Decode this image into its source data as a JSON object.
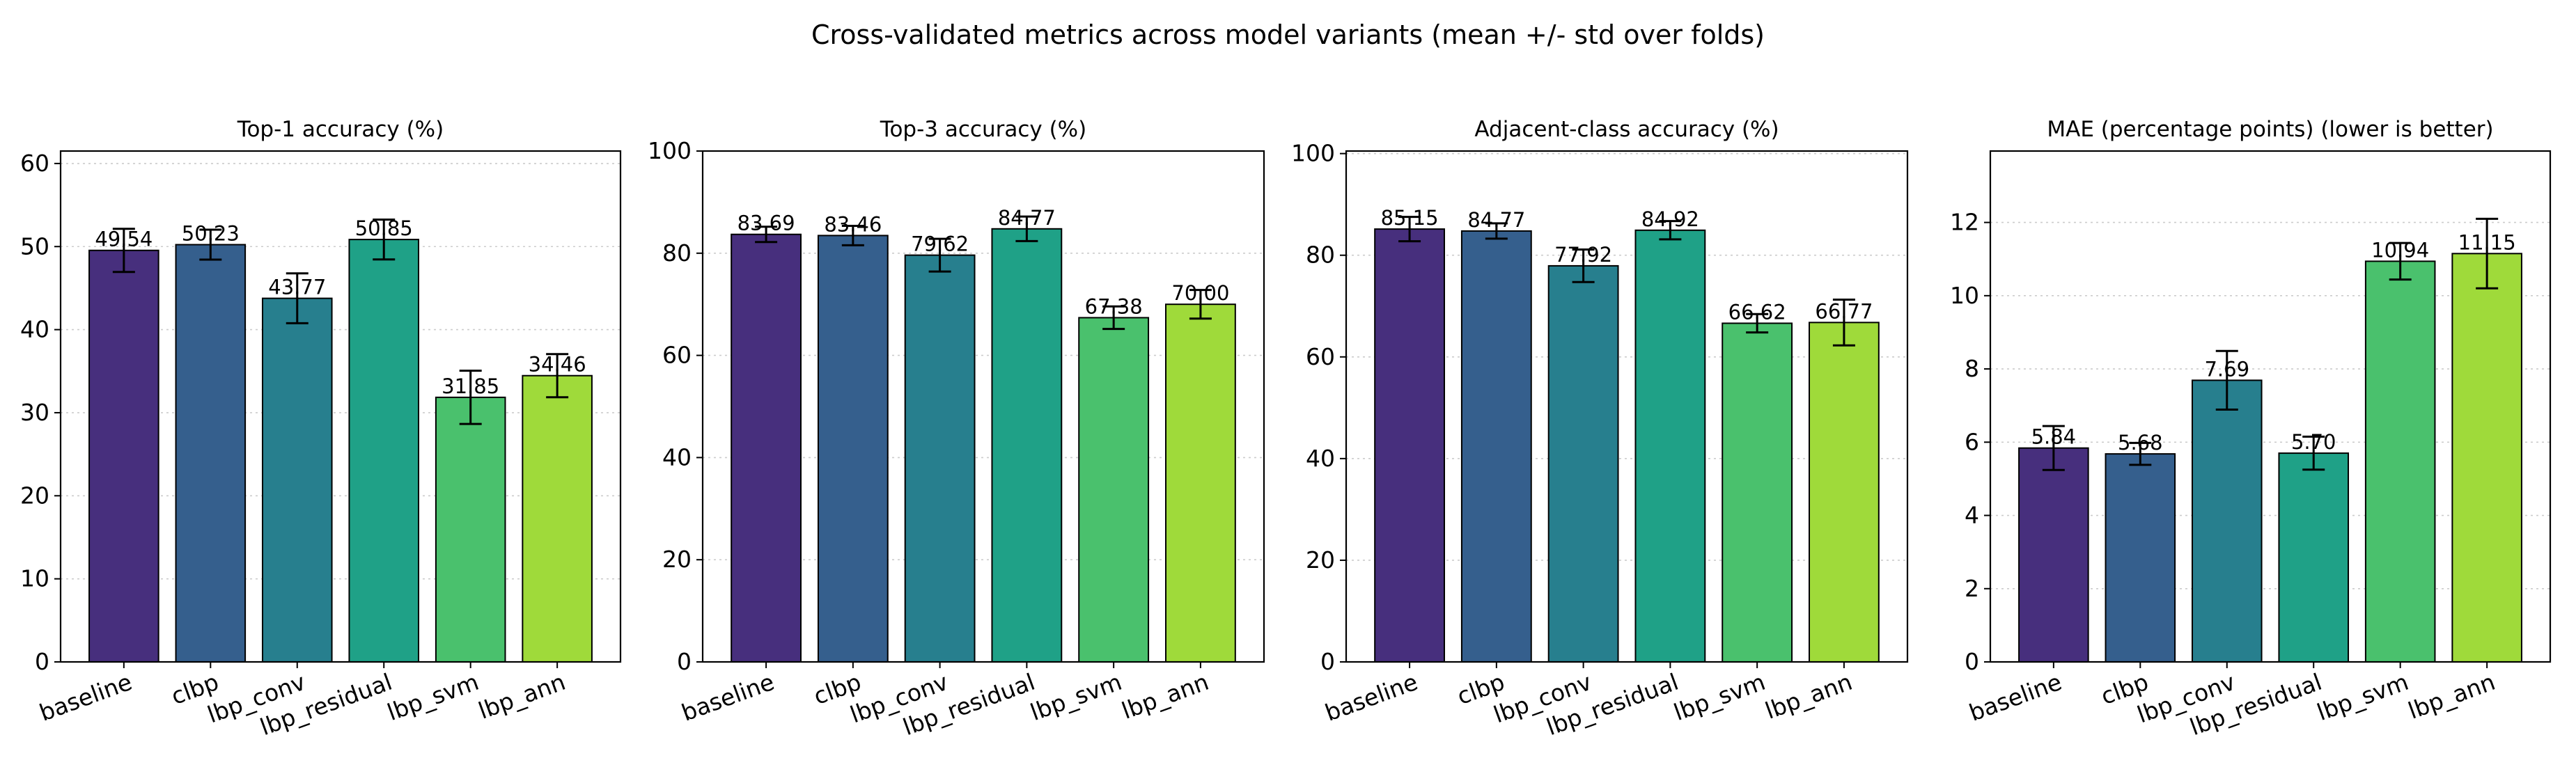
{
  "figure": {
    "suptitle": "Cross-validated metrics across model variants (mean +/- std over folds)"
  },
  "colors": {
    "bars": [
      "#472f7d",
      "#355f8d",
      "#277f8e",
      "#1fa187",
      "#4ac16d",
      "#9fda3a"
    ],
    "grid": "#cccccc",
    "edge": "#000000"
  },
  "chart_data": [
    {
      "type": "bar",
      "title": "Top-1 accuracy (%)",
      "categories": [
        "baseline",
        "clbp",
        "lbp_conv",
        "lbp_residual",
        "lbp_svm",
        "lbp_ann"
      ],
      "values": [
        49.54,
        50.23,
        43.77,
        50.85,
        31.85,
        34.46
      ],
      "errors": [
        2.6,
        1.8,
        3.0,
        2.4,
        3.2,
        2.6
      ],
      "value_labels": [
        "49.54",
        "50.23",
        "43.77",
        "50.85",
        "31.85",
        "34.46"
      ],
      "ylim": [
        0,
        61.5
      ],
      "yticks": [
        0,
        10,
        20,
        30,
        40,
        50,
        60
      ],
      "grid": "y"
    },
    {
      "type": "bar",
      "title": "Top-3 accuracy (%)",
      "categories": [
        "baseline",
        "clbp",
        "lbp_conv",
        "lbp_residual",
        "lbp_svm",
        "lbp_ann"
      ],
      "values": [
        83.69,
        83.46,
        79.62,
        84.77,
        67.38,
        70.0
      ],
      "errors": [
        1.5,
        1.9,
        3.2,
        2.4,
        2.2,
        2.8
      ],
      "value_labels": [
        "83.69",
        "83.46",
        "79.62",
        "84.77",
        "67.38",
        "70.00"
      ],
      "ylim": [
        0,
        100
      ],
      "yticks": [
        0,
        20,
        40,
        60,
        80,
        100
      ],
      "grid": "y"
    },
    {
      "type": "bar",
      "title": "Adjacent-class accuracy (%)",
      "categories": [
        "baseline",
        "clbp",
        "lbp_conv",
        "lbp_residual",
        "lbp_svm",
        "lbp_ann"
      ],
      "values": [
        85.15,
        84.77,
        77.92,
        84.92,
        66.62,
        66.77
      ],
      "errors": [
        2.4,
        1.5,
        3.2,
        1.8,
        1.8,
        4.5
      ],
      "value_labels": [
        "85.15",
        "84.77",
        "77.92",
        "84.92",
        "66.62",
        "66.77"
      ],
      "ylim": [
        0,
        100.5
      ],
      "yticks": [
        0,
        20,
        40,
        60,
        80,
        100
      ],
      "grid": "y"
    },
    {
      "type": "bar",
      "title": "MAE (percentage points)  (lower is better)",
      "categories": [
        "baseline",
        "clbp",
        "lbp_conv",
        "lbp_residual",
        "lbp_svm",
        "lbp_ann"
      ],
      "values": [
        5.84,
        5.68,
        7.69,
        5.7,
        10.94,
        11.15
      ],
      "errors": [
        0.6,
        0.3,
        0.8,
        0.45,
        0.5,
        0.95
      ],
      "value_labels": [
        "5.84",
        "5.68",
        "7.69",
        "5.70",
        "10.94",
        "11.15"
      ],
      "ylim": [
        0,
        13.95
      ],
      "yticks": [
        0,
        2,
        4,
        6,
        8,
        10,
        12
      ],
      "grid": "y"
    }
  ]
}
